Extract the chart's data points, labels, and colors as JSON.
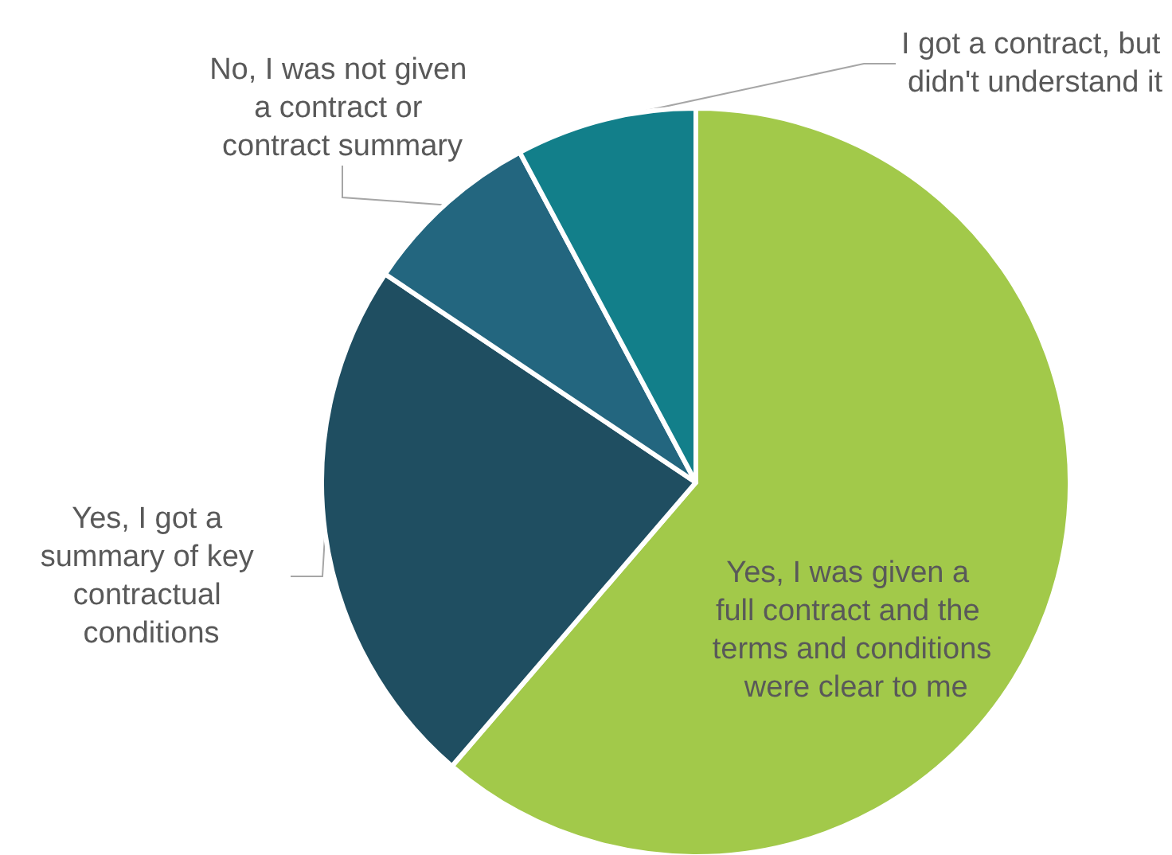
{
  "chart_data": {
    "type": "pie",
    "categories": [
      "Yes, I was given a full contract and the terms and conditions were clear to me",
      "Yes, I got a summary of key contractual conditions",
      "No, I was not given a contract or contract summary",
      "I got a contract, but didn't understand it"
    ],
    "values": [
      61.3,
      23.1,
      7.8,
      7.8
    ],
    "colors": [
      "#a2c94a",
      "#1f4e61",
      "#23667f",
      "#127f8a"
    ],
    "legend": false
  }
}
